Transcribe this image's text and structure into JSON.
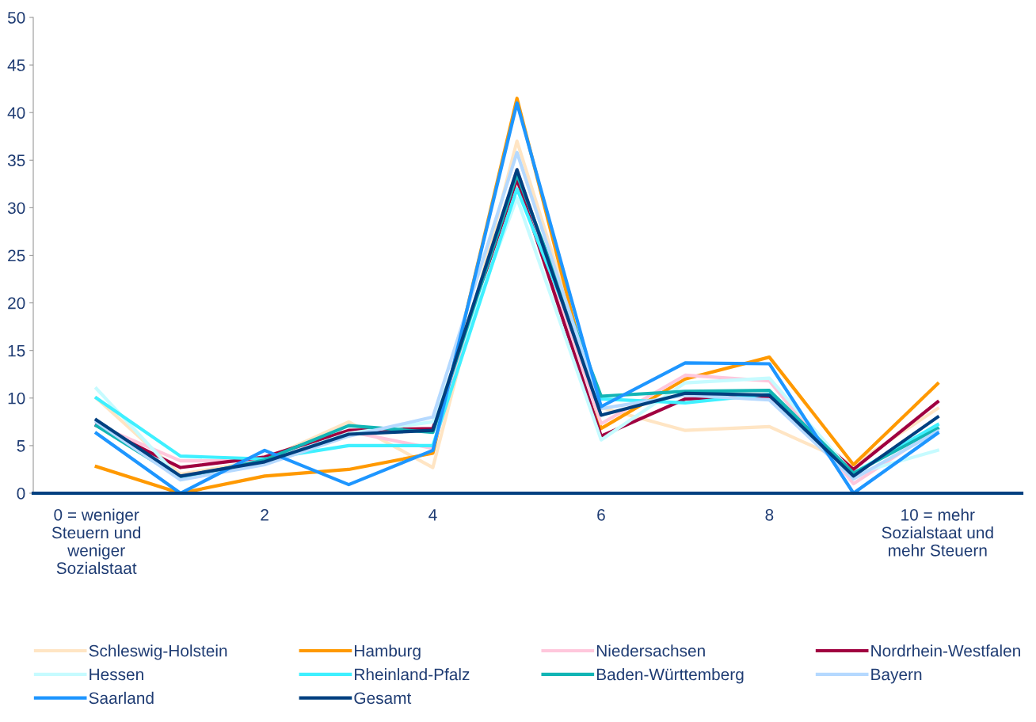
{
  "chart_data": {
    "type": "line",
    "x": [
      0,
      1,
      2,
      3,
      4,
      5,
      6,
      7,
      8,
      9,
      10
    ],
    "xlim": [
      -0.75,
      11
    ],
    "xticks": [
      {
        "value": 0,
        "label": "0 = weniger\nSteuern und\nweniger\nSozialstaat"
      },
      2,
      4,
      6,
      8,
      {
        "value": 10,
        "label": "10 = mehr\nSozialstaat und\nmehr Steuern"
      }
    ],
    "ylim": [
      0,
      50
    ],
    "yticks": [
      0,
      5,
      10,
      15,
      20,
      25,
      30,
      35,
      40,
      45,
      50
    ],
    "grid": false,
    "legend": "bottom",
    "marker": "none",
    "line_style": "solid",
    "series": [
      {
        "name": "Schleswig-Holstein",
        "color": "#ffe5c4",
        "values": [
          10,
          2,
          3.5,
          7.5,
          2.7,
          37,
          9,
          6.6,
          7,
          3,
          8.9
        ]
      },
      {
        "name": "Hamburg",
        "color": "#ff9900",
        "values": [
          2.8,
          0,
          1.8,
          2.5,
          4.2,
          41.5,
          6.8,
          12,
          14.3,
          3,
          11.5
        ]
      },
      {
        "name": "Niedersachsen",
        "color": "#ffc7dc",
        "values": [
          7.2,
          3.4,
          3.4,
          6.5,
          4.7,
          34,
          7.3,
          12.4,
          11.8,
          1,
          6.8
        ]
      },
      {
        "name": "Nordrhein-Westfalen",
        "color": "#a00040",
        "values": [
          7.1,
          2.7,
          3.8,
          6.6,
          6.8,
          33,
          6,
          9.9,
          10.2,
          2.5,
          9.6
        ]
      },
      {
        "name": "Hessen",
        "color": "#c6fbff",
        "values": [
          11,
          1.5,
          3.3,
          6.3,
          7.5,
          31,
          5.6,
          11.6,
          12.1,
          2,
          4.5
        ]
      },
      {
        "name": "Rheinland-Pfalz",
        "color": "#3ff0ff",
        "values": [
          10,
          3.9,
          3.6,
          5,
          5,
          32,
          9.9,
          9.5,
          10.4,
          2.1,
          7.2
        ]
      },
      {
        "name": "Baden-Württemberg",
        "color": "#12b5b5",
        "values": [
          7.1,
          1.6,
          3.5,
          7.1,
          6.4,
          33.5,
          10.2,
          10.7,
          10.8,
          2.1,
          6.8
        ]
      },
      {
        "name": "Bayern",
        "color": "#b5d9ff",
        "values": [
          7.5,
          1.4,
          3.0,
          6,
          8,
          35.8,
          8.9,
          10.3,
          9.8,
          1.5,
          6.5
        ]
      },
      {
        "name": "Saarland",
        "color": "#1e96ff",
        "values": [
          6.3,
          0,
          4.5,
          0.9,
          4.5,
          41,
          9.1,
          13.7,
          13.6,
          0,
          6.3
        ]
      },
      {
        "name": "Gesamt",
        "color": "#004080",
        "values": [
          7.7,
          1.8,
          3.3,
          6.2,
          6.6,
          34,
          8.2,
          10.5,
          10.3,
          1.8,
          8
        ]
      }
    ]
  }
}
